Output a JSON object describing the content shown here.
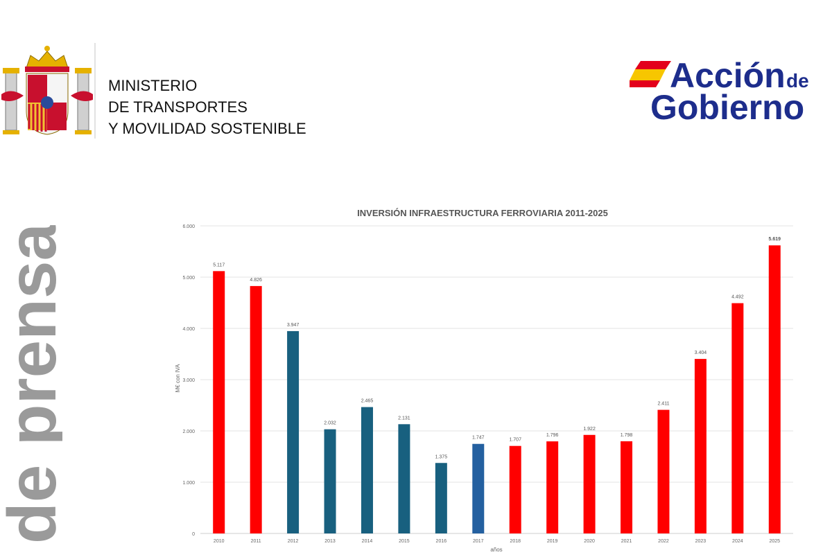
{
  "header": {
    "ministry_lines": [
      "MINISTERIO",
      "DE TRANSPORTES",
      "Y MOVILIDAD SOSTENIBLE"
    ],
    "brand_line1": "Acción",
    "brand_de": "de",
    "brand_line2": "Gobierno",
    "brand_color": "#1d2d8c",
    "flag_red": "#e3001b",
    "flag_yellow": "#f7c600"
  },
  "side_text": "de prensa",
  "chart_data": {
    "type": "bar",
    "title": "INVERSIÓN INFRAESTRUCTURA FERROVIARIA 2011-2025",
    "xlabel": "años",
    "ylabel": "M€ con IVA",
    "ylim": [
      0,
      6000
    ],
    "yticks": [
      0,
      1000,
      2000,
      3000,
      4000,
      5000,
      6000
    ],
    "ytick_labels": [
      "0",
      "1.000",
      "2.000",
      "3.000",
      "4.000",
      "5.000",
      "6.000"
    ],
    "grid": true,
    "categories": [
      "2010",
      "2011",
      "2012",
      "2013",
      "2014",
      "2015",
      "2016",
      "2017",
      "2018",
      "2019",
      "2020",
      "2021",
      "2022",
      "2023",
      "2024",
      "2025"
    ],
    "values": [
      5117,
      4826,
      3947,
      2032,
      2465,
      2131,
      1375,
      1747,
      1707,
      1796,
      1922,
      1798,
      2411,
      3404,
      4492,
      5619
    ],
    "value_labels": [
      "5.117",
      "4.826",
      "3.947",
      "2.032",
      "2.465",
      "2.131",
      "1.375",
      "1.747",
      "1.707",
      "1.796",
      "1.922",
      "1.798",
      "2.411",
      "3.404",
      "4.492",
      "5.619"
    ],
    "colors": [
      "#ff0000",
      "#ff0000",
      "#18607f",
      "#18607f",
      "#18607f",
      "#18607f",
      "#18607f",
      "#2460a0",
      "#ff0000",
      "#ff0000",
      "#ff0000",
      "#ff0000",
      "#ff0000",
      "#ff0000",
      "#ff0000",
      "#ff0000"
    ]
  }
}
